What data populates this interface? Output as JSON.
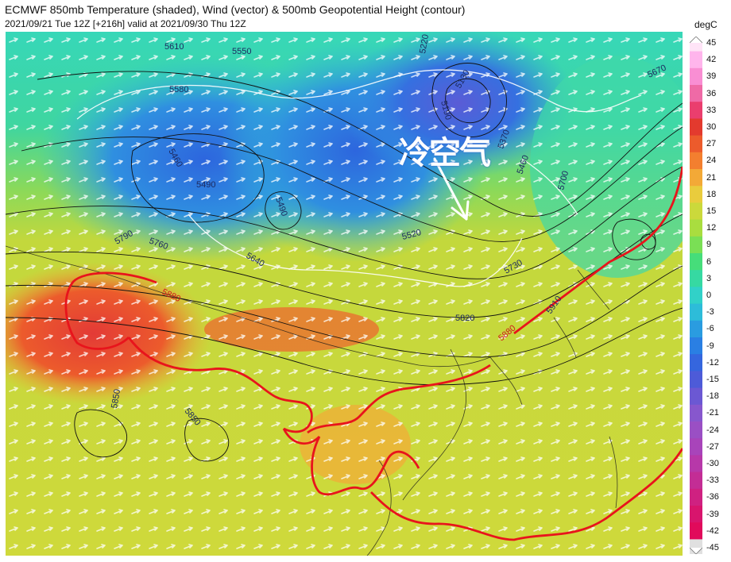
{
  "header": {
    "title": "ECMWF 850mb Temperature (shaded), Wind (vector) & 500mb Geopotential Height (contour)",
    "subtitle": "2021/09/21 Tue 12Z [+216h] valid at 2021/09/30 Thu 12Z"
  },
  "annotation": {
    "text": "冷空气"
  },
  "colorbar": {
    "units": "degC",
    "ticks": [
      "45",
      "42",
      "39",
      "36",
      "33",
      "30",
      "27",
      "24",
      "21",
      "18",
      "15",
      "12",
      "9",
      "6",
      "3",
      "0",
      "-3",
      "-6",
      "-9",
      "-12",
      "-15",
      "-18",
      "-21",
      "-24",
      "-27",
      "-30",
      "-33",
      "-36",
      "-39",
      "-42",
      "-45"
    ],
    "colors": [
      "#ffe4f7",
      "#ffb5ec",
      "#f98ed3",
      "#ef6aa6",
      "#ea3e6e",
      "#e33a2e",
      "#ec5b2c",
      "#f37f2f",
      "#f3a937",
      "#e9cc3d",
      "#cbd93b",
      "#a9dd3f",
      "#7adf55",
      "#46dd7a",
      "#36d9a2",
      "#31d1c8",
      "#2dbcd9",
      "#2a9ce0",
      "#2a7fe3",
      "#3566de",
      "#4d5bd8",
      "#6b58d3",
      "#8757cd",
      "#9a4fc4",
      "#a844ba",
      "#b738a9",
      "#c32d95",
      "#cf2181",
      "#d8156d",
      "#e10a5b",
      "#e0e0e0"
    ]
  },
  "contours": {
    "labels": [
      "5610",
      "5550",
      "5580",
      "5220",
      "5130",
      "5190",
      "5460",
      "5490",
      "5490",
      "5370",
      "5460",
      "5700",
      "5670",
      "5520",
      "5640",
      "5760",
      "5790",
      "5730",
      "5880",
      "5910",
      "5820",
      "5880",
      "5850",
      "5850"
    ]
  }
}
